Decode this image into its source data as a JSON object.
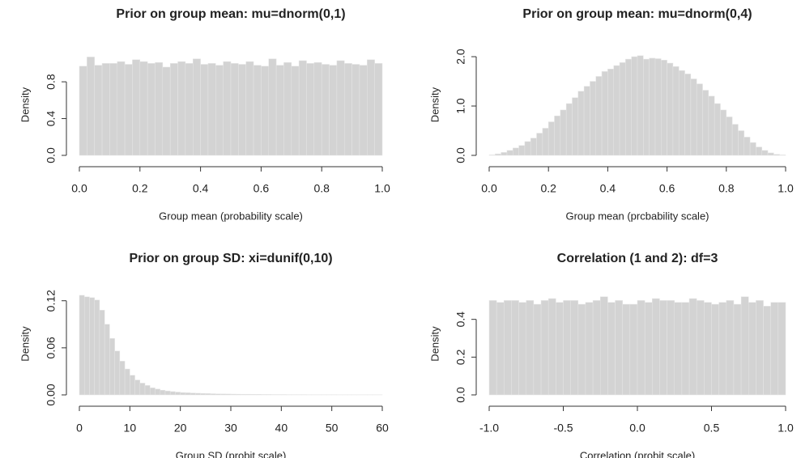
{
  "chart_data": [
    {
      "type": "histogram",
      "title": "Prior on group mean: mu=dnorm(0,1)",
      "x_label": "Group mean (probability scale)",
      "y_label": "Density",
      "color": "#d3d3d3",
      "bins": [
        0,
        0.025,
        0.05,
        0.075,
        0.1,
        0.125,
        0.15,
        0.175,
        0.2,
        0.225,
        0.25,
        0.275,
        0.3,
        0.325,
        0.35,
        0.375,
        0.4,
        0.425,
        0.45,
        0.475,
        0.5,
        0.525,
        0.55,
        0.575,
        0.6,
        0.625,
        0.65,
        0.675,
        0.7,
        0.725,
        0.75,
        0.775,
        0.8,
        0.825,
        0.85,
        0.875,
        0.9,
        0.925,
        0.95,
        0.975,
        1
      ],
      "values": [
        0.97,
        1.07,
        0.98,
        1.0,
        1.0,
        1.02,
        0.99,
        1.04,
        1.02,
        1.0,
        1.01,
        0.96,
        1.0,
        1.02,
        1.0,
        1.05,
        0.99,
        1.0,
        0.98,
        1.02,
        1.0,
        0.99,
        1.02,
        0.98,
        0.97,
        1.05,
        0.98,
        1.01,
        0.97,
        1.03,
        1.0,
        1.01,
        0.99,
        0.98,
        1.03,
        1.0,
        0.99,
        0.98,
        1.04,
        1.0
      ],
      "xlim": [
        0,
        1
      ],
      "xticks": [
        {
          "value": 0,
          "label": "0.0"
        },
        0.2,
        0.4,
        0.6,
        0.8,
        {
          "value": 1,
          "label": "1.0"
        }
      ],
      "ylim": [
        0,
        1.1
      ],
      "yticks": [
        {
          "value": 0,
          "label": "0.0"
        },
        0.4,
        0.8
      ]
    },
    {
      "type": "histogram",
      "title": "Prior on group mean: mu=dnorm(0,4)",
      "x_label": "Group mean (prcbability scale)",
      "y_label": "Density",
      "color": "#d3d3d3",
      "bins": [
        0,
        0.02,
        0.04,
        0.06,
        0.08,
        0.1,
        0.12,
        0.14,
        0.16,
        0.18,
        0.2,
        0.22,
        0.24,
        0.26,
        0.28,
        0.3,
        0.32,
        0.34,
        0.36,
        0.38,
        0.4,
        0.42,
        0.44,
        0.46,
        0.48,
        0.5,
        0.52,
        0.54,
        0.56,
        0.58,
        0.6,
        0.62,
        0.64,
        0.66,
        0.68,
        0.7,
        0.72,
        0.74,
        0.76,
        0.78,
        0.8,
        0.82,
        0.84,
        0.86,
        0.88,
        0.9,
        0.92,
        0.94,
        0.96,
        0.98,
        1
      ],
      "values": [
        0.01,
        0.03,
        0.06,
        0.1,
        0.15,
        0.2,
        0.28,
        0.35,
        0.45,
        0.55,
        0.68,
        0.8,
        0.92,
        1.05,
        1.17,
        1.3,
        1.4,
        1.5,
        1.6,
        1.7,
        1.75,
        1.82,
        1.88,
        1.95,
        2.0,
        2.02,
        1.95,
        1.97,
        1.96,
        1.93,
        1.87,
        1.8,
        1.72,
        1.65,
        1.55,
        1.45,
        1.32,
        1.2,
        1.05,
        0.92,
        0.78,
        0.63,
        0.5,
        0.37,
        0.26,
        0.17,
        0.1,
        0.05,
        0.02,
        0.01
      ],
      "xlim": [
        0,
        1
      ],
      "xticks": [
        {
          "value": 0,
          "label": "0.0"
        },
        0.2,
        0.4,
        0.6,
        0.8,
        {
          "value": 1,
          "label": "1.0"
        }
      ],
      "ylim": [
        0,
        2.05
      ],
      "yticks": [
        {
          "value": 0,
          "label": "0.0"
        },
        {
          "value": 1,
          "label": "1.0"
        },
        {
          "value": 2,
          "label": "2.0"
        }
      ]
    },
    {
      "type": "histogram",
      "title": "Prior on group SD: xi=dunif(0,10)",
      "x_label": "Group SD (probit scale)",
      "y_label": "Density",
      "color": "#d3d3d3",
      "bins": [
        0,
        1,
        2,
        3,
        4,
        5,
        6,
        7,
        8,
        9,
        10,
        11,
        12,
        13,
        14,
        15,
        16,
        17,
        18,
        19,
        20,
        21,
        22,
        23,
        24,
        25,
        26,
        27,
        28,
        29,
        30,
        31,
        32,
        33,
        34,
        35,
        36,
        37,
        38,
        39,
        40,
        41,
        42,
        43,
        44,
        45,
        46,
        47,
        48,
        49,
        50,
        51,
        52,
        53,
        54,
        55,
        56,
        57,
        58,
        59,
        60
      ],
      "values": [
        0.127,
        0.125,
        0.124,
        0.121,
        0.108,
        0.09,
        0.072,
        0.056,
        0.043,
        0.033,
        0.025,
        0.019,
        0.015,
        0.012,
        0.009,
        0.0075,
        0.006,
        0.005,
        0.0042,
        0.0036,
        0.003,
        0.0027,
        0.0024,
        0.0021,
        0.0019,
        0.0017,
        0.0015,
        0.0013,
        0.0012,
        0.0011,
        0.001,
        0.0009,
        0.0008,
        0.0008,
        0.0007,
        0.0007,
        0.0006,
        0.0006,
        0.0005,
        0.0005,
        0.0005,
        0.0004,
        0.0004,
        0.0004,
        0.0004,
        0.0003,
        0.0003,
        0.0003,
        0.0003,
        0.0003,
        0.0003,
        0.0002,
        0.0002,
        0.0002,
        0.0002,
        0.0002,
        0.0002,
        0.0002,
        0.0002,
        0.0002
      ],
      "xlim": [
        0,
        60
      ],
      "xticks": [
        0,
        10,
        20,
        30,
        40,
        50,
        60
      ],
      "ylim": [
        0,
        0.13
      ],
      "yticks": [
        {
          "value": 0,
          "label": "0.00"
        },
        {
          "value": 0.06,
          "label": "0.06"
        },
        {
          "value": 0.12,
          "label": "0.12"
        }
      ]
    },
    {
      "type": "histogram",
      "title": "Correlation (1 and 2): df=3",
      "x_label": "Correlation (probit scale)",
      "y_label": "Density",
      "color": "#d3d3d3",
      "bins": [
        -1,
        -0.95,
        -0.9,
        -0.85,
        -0.8,
        -0.75,
        -0.7,
        -0.65,
        -0.6,
        -0.55,
        -0.5,
        -0.45,
        -0.4,
        -0.35,
        -0.3,
        -0.25,
        -0.2,
        -0.15,
        -0.1,
        -0.05,
        0,
        0.05,
        0.1,
        0.15,
        0.2,
        0.25,
        0.3,
        0.35,
        0.4,
        0.45,
        0.5,
        0.55,
        0.6,
        0.65,
        0.7,
        0.75,
        0.8,
        0.85,
        0.9,
        0.95,
        1
      ],
      "values": [
        0.5,
        0.49,
        0.5,
        0.5,
        0.49,
        0.5,
        0.48,
        0.5,
        0.51,
        0.49,
        0.5,
        0.5,
        0.48,
        0.49,
        0.5,
        0.52,
        0.49,
        0.5,
        0.48,
        0.48,
        0.5,
        0.49,
        0.51,
        0.5,
        0.5,
        0.49,
        0.49,
        0.51,
        0.5,
        0.49,
        0.48,
        0.49,
        0.5,
        0.48,
        0.52,
        0.49,
        0.5,
        0.47,
        0.49,
        0.49
      ],
      "xlim": [
        -1,
        1
      ],
      "xticks": [
        {
          "value": -1,
          "label": "-1.0"
        },
        -0.5,
        {
          "value": 0,
          "label": "0.0"
        },
        0.5,
        {
          "value": 1,
          "label": "1.0"
        }
      ],
      "ylim": [
        0,
        0.54
      ],
      "yticks": [
        {
          "value": 0,
          "label": "0.0"
        },
        0.2,
        0.4
      ]
    }
  ]
}
